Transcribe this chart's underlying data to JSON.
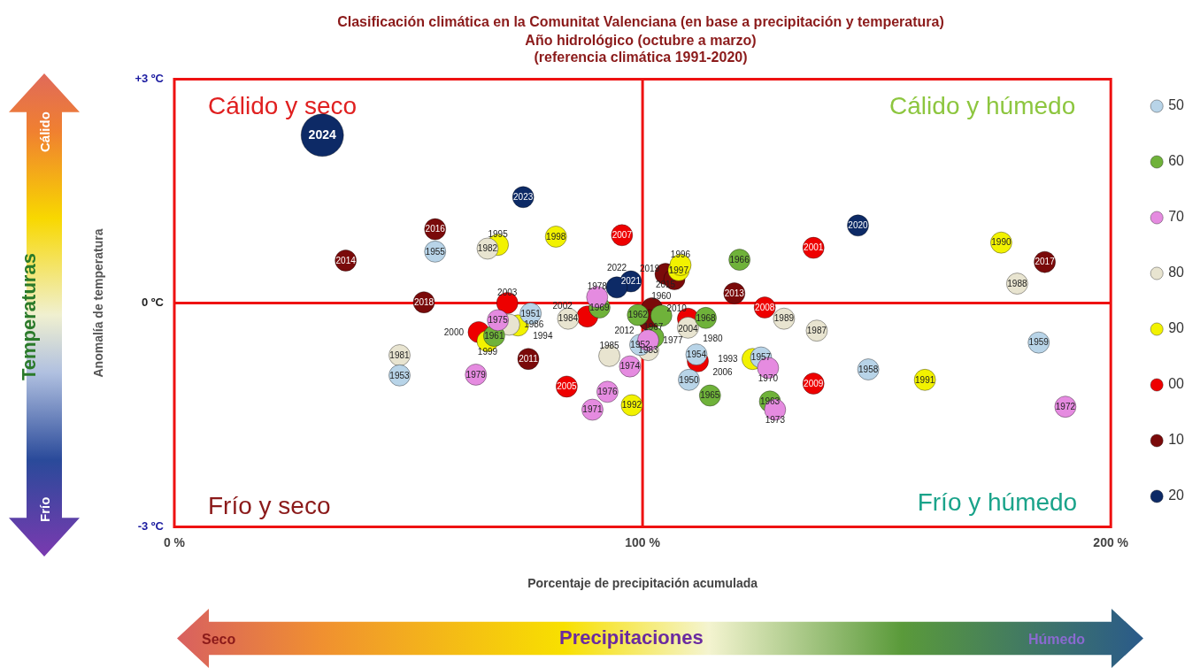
{
  "chart_data": {
    "type": "bubble",
    "title": "Clasificación climática en la Comunitat Valenciana (en base a precipitación y temperatura)",
    "subtitle": "Año hidrológico (octubre a marzo)\n(referencia climática 1991-2020)",
    "xlabel": "Porcentaje de precipitación acumulada",
    "ylabel": "Anomalía de temperatura",
    "xlim": [
      0,
      200
    ],
    "xticks": [
      {
        "value": 0,
        "label": "0 %"
      },
      {
        "value": 100,
        "label": "100 %"
      },
      {
        "value": 200,
        "label": "200 %"
      }
    ],
    "ylim": [
      -3,
      3
    ],
    "yticks": [
      {
        "value": -3,
        "label": "-3 ºC"
      },
      {
        "value": 0,
        "label": "0 ºC"
      },
      {
        "value": 3,
        "label": "+3 ºC"
      }
    ],
    "legend": "right",
    "marker": "circle",
    "ref_lines": [
      {
        "axis": "x",
        "value": 100,
        "color": "#ee1111"
      },
      {
        "axis": "y",
        "value": 0,
        "color": "#ee1111"
      }
    ],
    "series": [
      {
        "name": "50",
        "color": "#b8d4e8",
        "x": [
          55.7,
          48.1,
          76.1,
          99.5,
          109.9,
          111.5,
          148.2,
          184.6,
          125.3
        ],
        "values": [
          0.69,
          -0.97,
          -0.14,
          -0.56,
          -1.03,
          -0.69,
          -0.89,
          -0.53,
          -0.73
        ],
        "sizes": [
          0.25,
          0.25,
          0.25,
          0.25,
          0.25,
          0.25,
          0.25,
          0.25,
          0.25
        ]
      },
      {
        "name": "60",
        "color": "#6fb23a",
        "x": [
          120.7,
          90.8,
          68.3,
          113.5,
          114.4,
          127.2,
          102.3,
          99.0,
          104.0
        ],
        "values": [
          0.58,
          -0.06,
          -0.44,
          -0.2,
          -1.24,
          -1.32,
          -0.46,
          -0.16,
          -0.17
        ],
        "sizes": [
          0.25,
          0.25,
          0.25,
          0.25,
          0.25,
          0.25,
          0.25,
          0.25,
          0.25
        ]
      },
      {
        "name": "70",
        "color": "#e58be0",
        "x": [
          90.3,
          64.4,
          97.3,
          92.5,
          89.3,
          126.8,
          128.3,
          190.3,
          69.1,
          101.2
        ],
        "values": [
          0.08,
          -0.96,
          -0.85,
          -1.19,
          -1.43,
          -0.87,
          -1.43,
          -1.39,
          -0.23,
          -0.5
        ],
        "sizes": [
          0.25,
          0.25,
          0.25,
          0.25,
          0.25,
          0.25,
          0.25,
          0.25,
          0.25,
          0.25
        ]
      },
      {
        "name": "80",
        "color": "#e8e4d0",
        "x": [
          66.9,
          48.1,
          84.1,
          92.9,
          101.2,
          109.7,
          130.2,
          137.2,
          180.0,
          71.5
        ],
        "values": [
          0.73,
          -0.7,
          -0.21,
          -0.71,
          -0.63,
          -0.33,
          -0.21,
          -0.37,
          0.26,
          -0.29
        ],
        "sizes": [
          0.25,
          0.25,
          0.25,
          0.25,
          0.25,
          0.25,
          0.25,
          0.25,
          0.25,
          0.25
        ]
      },
      {
        "name": "90",
        "color": "#f2f200",
        "x": [
          69.1,
          81.5,
          107.7,
          108.1,
          73.4,
          66.9,
          97.7,
          123.5,
          160.3,
          176.6
        ],
        "values": [
          0.78,
          0.89,
          0.44,
          0.51,
          -0.3,
          -0.51,
          -1.37,
          -0.75,
          -1.03,
          0.81
        ],
        "sizes": [
          0.25,
          0.25,
          0.25,
          0.25,
          0.25,
          0.25,
          0.25,
          0.25,
          0.25,
          0.25
        ]
      },
      {
        "name": "00",
        "color": "#ee0000",
        "x": [
          95.6,
          71.1,
          88.2,
          65.0,
          83.8,
          136.5,
          109.7,
          111.8,
          126.1,
          136.5
        ],
        "values": [
          0.91,
          0.0,
          -0.18,
          -0.39,
          -1.12,
          0.74,
          -0.21,
          -0.78,
          -0.06,
          -1.08
        ],
        "sizes": [
          0.25,
          0.25,
          0.25,
          0.25,
          0.25,
          0.25,
          0.25,
          0.25,
          0.25,
          0.25
        ]
      },
      {
        "name": "10",
        "color": "#7a0a0a",
        "x": [
          36.6,
          55.7,
          53.3,
          75.6,
          104.9,
          106.8,
          119.6,
          102.0,
          101.4,
          185.9
        ],
        "values": [
          0.57,
          0.99,
          0.01,
          -0.75,
          0.39,
          0.32,
          0.13,
          -0.07,
          -0.23,
          0.55
        ],
        "sizes": [
          0.25,
          0.25,
          0.25,
          0.25,
          0.25,
          0.25,
          0.25,
          0.25,
          0.25,
          0.25
        ]
      },
      {
        "name": "20",
        "color": "#0d2a66",
        "x": [
          31.6,
          74.5,
          97.5,
          94.5,
          146.0
        ],
        "values": [
          2.25,
          1.42,
          0.29,
          0.21,
          1.04
        ],
        "sizes": [
          1,
          0.25,
          0.25,
          0.25,
          0.25
        ]
      }
    ],
    "annotations": [
      "Cálido y seco",
      "Cálido y húmedo",
      "Frío y seco",
      "Frío y húmedo",
      "Temperaturas",
      "Cálido",
      "Frío",
      "Precipitaciones",
      "Seco",
      "Húmedo",
      {
        "text": "1955",
        "x": 55.7,
        "y": 0.69
      },
      {
        "text": "1953",
        "x": 48.1,
        "y": -0.97
      },
      {
        "text": "1951",
        "x": 76.1,
        "y": -0.14
      },
      {
        "text": "1952",
        "x": 99.5,
        "y": -0.56
      },
      {
        "text": "1950",
        "x": 109.9,
        "y": -1.03
      },
      {
        "text": "1954",
        "x": 111.5,
        "y": -0.69
      },
      {
        "text": "1958",
        "x": 148.2,
        "y": -0.89
      },
      {
        "text": "1959",
        "x": 184.6,
        "y": -0.53
      },
      {
        "text": "1957",
        "x": 125.3,
        "y": -0.73
      },
      {
        "text": "1966",
        "x": 120.7,
        "y": 0.58
      },
      {
        "text": "1969",
        "x": 90.8,
        "y": -0.06
      },
      {
        "text": "1961",
        "x": 68.3,
        "y": -0.44
      },
      {
        "text": "1968",
        "x": 113.5,
        "y": -0.2
      },
      {
        "text": "1965",
        "x": 114.4,
        "y": -1.24
      },
      {
        "text": "1963",
        "x": 127.2,
        "y": -1.32
      },
      {
        "text": "1967",
        "x": 102.3,
        "y": -0.46
      },
      {
        "text": "1962",
        "x": 99.0,
        "y": -0.16
      },
      {
        "text": "1960",
        "x": 104.0,
        "y": -0.17
      },
      {
        "text": "1978",
        "x": 90.3,
        "y": 0.08
      },
      {
        "text": "1979",
        "x": 64.4,
        "y": -0.96
      },
      {
        "text": "1974",
        "x": 97.3,
        "y": -0.85
      },
      {
        "text": "1976",
        "x": 92.5,
        "y": -1.19
      },
      {
        "text": "1971",
        "x": 89.3,
        "y": -1.43
      },
      {
        "text": "1970",
        "x": 126.8,
        "y": -0.87
      },
      {
        "text": "1973",
        "x": 128.3,
        "y": -1.43
      },
      {
        "text": "1972",
        "x": 190.3,
        "y": -1.39
      },
      {
        "text": "1975",
        "x": 69.1,
        "y": -0.23
      },
      {
        "text": "1977",
        "x": 101.2,
        "y": -0.5
      },
      {
        "text": "1982",
        "x": 66.9,
        "y": 0.73
      },
      {
        "text": "1981",
        "x": 48.1,
        "y": -0.7
      },
      {
        "text": "1984",
        "x": 84.1,
        "y": -0.21
      },
      {
        "text": "1985",
        "x": 92.9,
        "y": -0.71
      },
      {
        "text": "1983",
        "x": 101.2,
        "y": -0.63
      },
      {
        "text": "1980",
        "x": 109.7,
        "y": -0.33
      },
      {
        "text": "1989",
        "x": 130.2,
        "y": -0.21
      },
      {
        "text": "1987",
        "x": 137.2,
        "y": -0.37
      },
      {
        "text": "1988",
        "x": 180.0,
        "y": 0.26
      },
      {
        "text": "1986",
        "x": 71.5,
        "y": -0.29
      },
      {
        "text": "1995",
        "x": 69.1,
        "y": 0.78
      },
      {
        "text": "1998",
        "x": 81.5,
        "y": 0.89
      },
      {
        "text": "1997",
        "x": 107.7,
        "y": 0.44
      },
      {
        "text": "1996",
        "x": 108.1,
        "y": 0.51
      },
      {
        "text": "1994",
        "x": 73.4,
        "y": -0.3
      },
      {
        "text": "1999",
        "x": 66.9,
        "y": -0.51
      },
      {
        "text": "1992",
        "x": 97.7,
        "y": -1.37
      },
      {
        "text": "1993",
        "x": 123.5,
        "y": -0.75
      },
      {
        "text": "1991",
        "x": 160.3,
        "y": -1.03
      },
      {
        "text": "1990",
        "x": 176.6,
        "y": 0.81
      },
      {
        "text": "2007",
        "x": 95.6,
        "y": 0.91
      },
      {
        "text": "2003",
        "x": 71.1,
        "y": 0.0
      },
      {
        "text": "2002",
        "x": 88.2,
        "y": -0.18
      },
      {
        "text": "2000",
        "x": 65.0,
        "y": -0.39
      },
      {
        "text": "2005",
        "x": 83.8,
        "y": -1.12
      },
      {
        "text": "2001",
        "x": 136.5,
        "y": 0.74
      },
      {
        "text": "2004",
        "x": 109.7,
        "y": -0.21
      },
      {
        "text": "2006",
        "x": 111.8,
        "y": -0.78
      },
      {
        "text": "2008",
        "x": 126.1,
        "y": -0.06
      },
      {
        "text": "2009",
        "x": 136.5,
        "y": -1.08
      },
      {
        "text": "2014",
        "x": 36.6,
        "y": 0.57
      },
      {
        "text": "2016",
        "x": 55.7,
        "y": 0.99
      },
      {
        "text": "2018",
        "x": 53.3,
        "y": 0.01
      },
      {
        "text": "2011",
        "x": 75.6,
        "y": -0.75
      },
      {
        "text": "2015",
        "x": 104.9,
        "y": 0.39
      },
      {
        "text": "2019",
        "x": 106.8,
        "y": 0.32
      },
      {
        "text": "2013",
        "x": 119.6,
        "y": 0.13
      },
      {
        "text": "2010",
        "x": 102.0,
        "y": -0.07
      },
      {
        "text": "2012",
        "x": 101.4,
        "y": -0.23
      },
      {
        "text": "2017",
        "x": 185.9,
        "y": 0.55
      },
      {
        "text": "2024",
        "x": 31.6,
        "y": 2.25
      },
      {
        "text": "2023",
        "x": 74.5,
        "y": 1.42
      },
      {
        "text": "2021",
        "x": 97.5,
        "y": 0.29
      },
      {
        "text": "2022",
        "x": 94.5,
        "y": 0.21
      },
      {
        "text": "2020",
        "x": 146.0,
        "y": 1.04
      }
    ]
  }
}
